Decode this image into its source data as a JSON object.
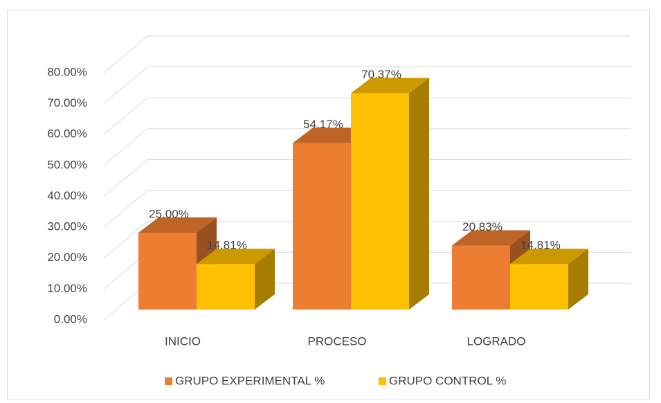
{
  "chart_data": {
    "type": "bar3d",
    "categories": [
      "INICIO",
      "PROCESO",
      "LOGRADO"
    ],
    "series": [
      {
        "name": "GRUPO EXPERIMENTAL %",
        "color": "#ED7D31",
        "values": [
          25.0,
          54.17,
          20.83
        ],
        "value_labels": [
          "25.00%",
          "54.17%",
          "20.83%"
        ]
      },
      {
        "name": "GRUPO CONTROL %",
        "color": "#FFC000",
        "values": [
          14.81,
          70.37,
          14.81
        ],
        "value_labels": [
          "14.81%",
          "70.37%",
          "14.81%"
        ]
      }
    ],
    "ylim": [
      0,
      80
    ],
    "yticks": [
      {
        "value": 0,
        "label": "0.00%"
      },
      {
        "value": 10,
        "label": "10.00%"
      },
      {
        "value": 20,
        "label": "20.00%"
      },
      {
        "value": 30,
        "label": "30.00%"
      },
      {
        "value": 40,
        "label": "40.00%"
      },
      {
        "value": 50,
        "label": "50.00%"
      },
      {
        "value": 60,
        "label": "60.00%"
      },
      {
        "value": 70,
        "label": "70.00%"
      },
      {
        "value": 80,
        "label": "80.00%"
      }
    ],
    "grid": true,
    "legend": "bottom"
  }
}
